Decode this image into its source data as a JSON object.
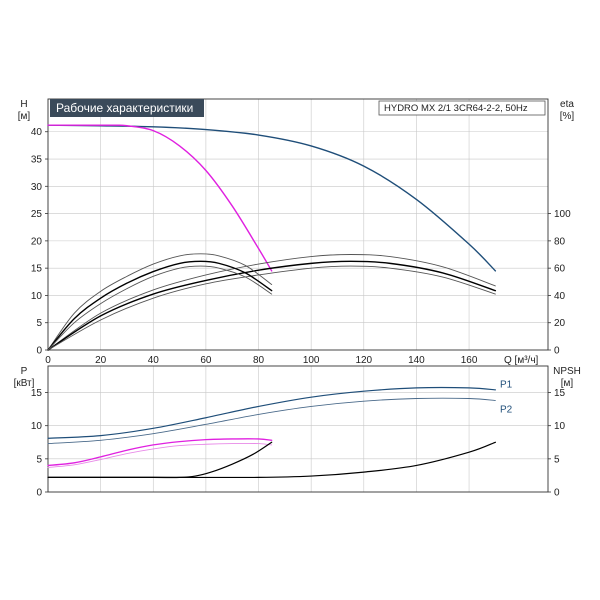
{
  "chart_data": [
    {
      "type": "line",
      "title": "Рабочие характеристики",
      "model": "HYDRO MX 2/1 3CR64-2-2, 50Hz",
      "xlabel": "Q [м³/ч]",
      "ylabel_line1": "H",
      "ylabel_line2": "[м]",
      "y2label_line1": "eta",
      "y2label_line2": "[%]",
      "xlim": [
        0,
        190
      ],
      "ylim": [
        0,
        46
      ],
      "y2lim": [
        0,
        184
      ],
      "xticks": [
        0,
        20,
        40,
        60,
        80,
        100,
        120,
        140,
        160
      ],
      "yticks": [
        0,
        5,
        10,
        15,
        20,
        25,
        30,
        35,
        40
      ],
      "y2ticks": [
        0,
        20,
        40,
        60,
        80,
        100
      ],
      "grid": true,
      "series": [
        {
          "key": "h_full",
          "axis": "y",
          "color": "#1f4e79",
          "width": 1.4,
          "points": [
            [
              0,
              41.2
            ],
            [
              20,
              41.1
            ],
            [
              40,
              40.9
            ],
            [
              60,
              40.4
            ],
            [
              80,
              39.4
            ],
            [
              100,
              37.4
            ],
            [
              120,
              33.7
            ],
            [
              140,
              27.6
            ],
            [
              160,
              19.4
            ],
            [
              170,
              14.5
            ]
          ]
        },
        {
          "key": "h_single",
          "axis": "y",
          "color": "#e020e0",
          "width": 1.4,
          "points": [
            [
              0,
              41.2
            ],
            [
              15,
              41.2
            ],
            [
              25,
              41.2
            ],
            [
              30,
              41.1
            ],
            [
              40,
              40.2
            ],
            [
              50,
              37.4
            ],
            [
              60,
              32.9
            ],
            [
              70,
              26.4
            ],
            [
              80,
              18.6
            ],
            [
              85,
              14.5
            ]
          ]
        },
        {
          "key": "eta_full_upper",
          "axis": "y2",
          "color": "#555555",
          "width": 0.9,
          "points": [
            [
              0,
              0
            ],
            [
              20,
              27
            ],
            [
              40,
              44
            ],
            [
              60,
              55
            ],
            [
              80,
              63
            ],
            [
              100,
              68.5
            ],
            [
              115,
              70
            ],
            [
              130,
              68.5
            ],
            [
              150,
              61
            ],
            [
              170,
              47
            ]
          ]
        },
        {
          "key": "eta_full_mid",
          "axis": "y2",
          "color": "#000000",
          "width": 1.4,
          "points": [
            [
              0,
              0
            ],
            [
              20,
              25
            ],
            [
              40,
              41
            ],
            [
              60,
              51
            ],
            [
              80,
              58.5
            ],
            [
              100,
              63.5
            ],
            [
              115,
              65
            ],
            [
              130,
              63.5
            ],
            [
              150,
              56.5
            ],
            [
              170,
              43.5
            ]
          ]
        },
        {
          "key": "eta_full_lower",
          "axis": "y2",
          "color": "#555555",
          "width": 0.9,
          "points": [
            [
              0,
              0
            ],
            [
              20,
              22
            ],
            [
              40,
              38
            ],
            [
              60,
              48.5
            ],
            [
              80,
              55
            ],
            [
              100,
              60
            ],
            [
              115,
              61.5
            ],
            [
              130,
              60
            ],
            [
              150,
              53.5
            ],
            [
              170,
              41
            ]
          ]
        },
        {
          "key": "eta_single_upper",
          "axis": "y2",
          "color": "#555555",
          "width": 0.9,
          "points": [
            [
              0,
              0
            ],
            [
              10,
              27
            ],
            [
              20,
              43
            ],
            [
              30,
              54
            ],
            [
              40,
              63
            ],
            [
              50,
              69
            ],
            [
              58,
              70.5
            ],
            [
              65,
              69
            ],
            [
              75,
              62
            ],
            [
              85,
              48
            ]
          ]
        },
        {
          "key": "eta_single_mid",
          "axis": "y2",
          "color": "#000000",
          "width": 1.4,
          "points": [
            [
              0,
              0
            ],
            [
              10,
              23
            ],
            [
              20,
              38
            ],
            [
              30,
              49
            ],
            [
              40,
              57.5
            ],
            [
              50,
              63.5
            ],
            [
              58,
              65
            ],
            [
              65,
              63.5
            ],
            [
              75,
              56.5
            ],
            [
              85,
              43.5
            ]
          ]
        },
        {
          "key": "eta_single_lower",
          "axis": "y2",
          "color": "#555555",
          "width": 0.9,
          "points": [
            [
              0,
              0
            ],
            [
              10,
              20
            ],
            [
              20,
              34
            ],
            [
              30,
              45
            ],
            [
              40,
              54
            ],
            [
              50,
              60
            ],
            [
              58,
              61.5
            ],
            [
              65,
              60
            ],
            [
              75,
              53.5
            ],
            [
              85,
              41
            ]
          ]
        }
      ]
    },
    {
      "type": "line",
      "xlim": [
        0,
        190
      ],
      "ylim": [
        0,
        19
      ],
      "y2lim": [
        0,
        19
      ],
      "ylabel_line1": "P",
      "ylabel_line2": "[кВт]",
      "y2label_line1": "NPSH",
      "y2label_line2": "[м]",
      "xticks": [
        0,
        20,
        40,
        60,
        80,
        100,
        120,
        140,
        160
      ],
      "yticks": [
        0,
        5,
        10,
        15
      ],
      "y2ticks": [
        0,
        5,
        10,
        15
      ],
      "grid": true,
      "series_labels": [
        {
          "text": "P1",
          "color": "#1f4e79",
          "x": 171,
          "y": 16.3
        },
        {
          "text": "P2",
          "color": "#1f4e79",
          "x": 171,
          "y": 12.5
        }
      ],
      "series": [
        {
          "key": "p1_full",
          "axis": "y",
          "color": "#1f4e79",
          "width": 1.2,
          "points": [
            [
              0,
              8.1
            ],
            [
              20,
              8.5
            ],
            [
              40,
              9.6
            ],
            [
              60,
              11.2
            ],
            [
              80,
              12.9
            ],
            [
              100,
              14.3
            ],
            [
              120,
              15.2
            ],
            [
              140,
              15.7
            ],
            [
              160,
              15.7
            ],
            [
              170,
              15.4
            ]
          ]
        },
        {
          "key": "p2_full",
          "axis": "y",
          "color": "#4a6a8a",
          "width": 0.9,
          "points": [
            [
              0,
              7.3
            ],
            [
              20,
              7.8
            ],
            [
              40,
              8.8
            ],
            [
              60,
              10.2
            ],
            [
              80,
              11.7
            ],
            [
              100,
              12.9
            ],
            [
              120,
              13.7
            ],
            [
              140,
              14.1
            ],
            [
              160,
              14.1
            ],
            [
              170,
              13.8
            ]
          ]
        },
        {
          "key": "p1_single",
          "axis": "y",
          "color": "#e020e0",
          "width": 1.3,
          "points": [
            [
              0,
              4.0
            ],
            [
              10,
              4.4
            ],
            [
              20,
              5.3
            ],
            [
              30,
              6.3
            ],
            [
              40,
              7.1
            ],
            [
              50,
              7.6
            ],
            [
              60,
              7.9
            ],
            [
              70,
              8.0
            ],
            [
              80,
              8.0
            ],
            [
              85,
              7.8
            ]
          ]
        },
        {
          "key": "p2_single",
          "axis": "y",
          "color": "#e88ae8",
          "width": 0.9,
          "points": [
            [
              0,
              3.7
            ],
            [
              10,
              4.1
            ],
            [
              20,
              4.9
            ],
            [
              30,
              5.8
            ],
            [
              40,
              6.5
            ],
            [
              50,
              7.0
            ],
            [
              60,
              7.2
            ],
            [
              70,
              7.3
            ],
            [
              80,
              7.3
            ],
            [
              85,
              7.1
            ]
          ]
        },
        {
          "key": "npsh_single",
          "axis": "y2",
          "color": "#000000",
          "width": 1.2,
          "points": [
            [
              0,
              2.2
            ],
            [
              20,
              2.2
            ],
            [
              40,
              2.2
            ],
            [
              50,
              2.2
            ],
            [
              56,
              2.4
            ],
            [
              62,
              3.0
            ],
            [
              70,
              4.2
            ],
            [
              78,
              5.7
            ],
            [
              85,
              7.5
            ]
          ]
        },
        {
          "key": "npsh_full",
          "axis": "y2",
          "color": "#000000",
          "width": 1.2,
          "points": [
            [
              0,
              2.2
            ],
            [
              40,
              2.2
            ],
            [
              80,
              2.2
            ],
            [
              100,
              2.4
            ],
            [
              120,
              3.0
            ],
            [
              140,
              4.0
            ],
            [
              160,
              6.0
            ],
            [
              170,
              7.5
            ]
          ]
        }
      ]
    }
  ]
}
